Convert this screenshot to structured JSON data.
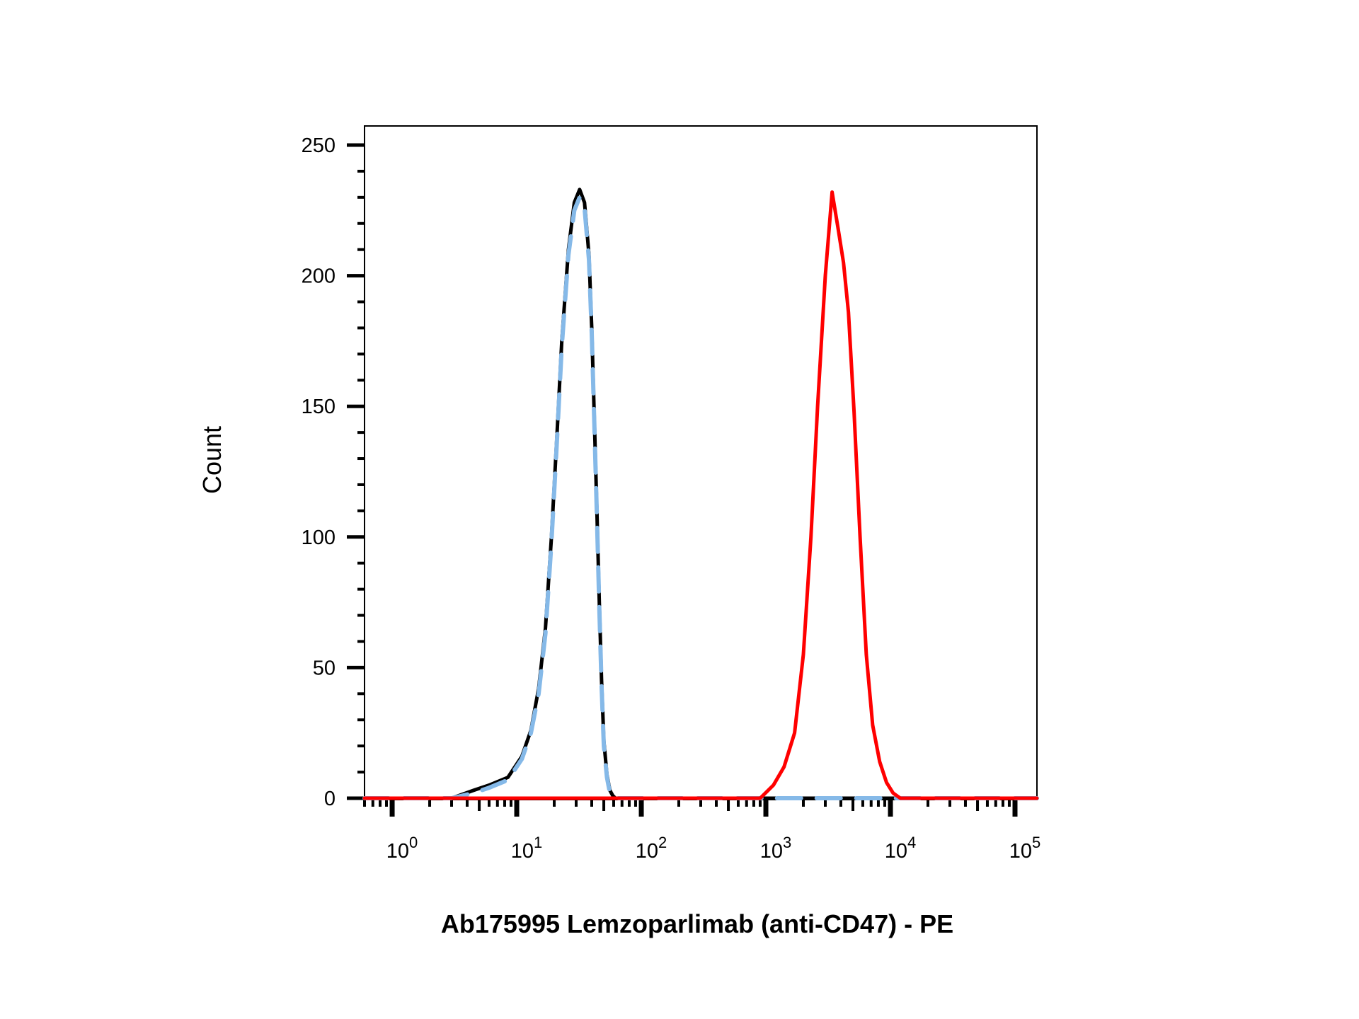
{
  "chart_data": {
    "type": "line",
    "title": "",
    "xlabel": "Ab175995 Lemzoparlimab (anti-CD47) - PE",
    "ylabel": "Count",
    "x_scale": "log",
    "xlim": [
      0.6,
      150000
    ],
    "ylim": [
      0,
      250
    ],
    "grid": false,
    "legend": "none",
    "y_ticks": [
      0,
      50,
      100,
      150,
      200,
      250
    ],
    "y_tick_labels": [
      "0",
      "50",
      "100",
      "150",
      "200",
      "250"
    ],
    "x_ticks": [
      1,
      10,
      100,
      1000,
      10000,
      100000
    ],
    "x_tick_labels": [
      {
        "base": "10",
        "exp": "0"
      },
      {
        "base": "10",
        "exp": "1"
      },
      {
        "base": "10",
        "exp": "2"
      },
      {
        "base": "10",
        "exp": "3"
      },
      {
        "base": "10",
        "exp": "4"
      },
      {
        "base": "10",
        "exp": "5"
      }
    ],
    "series": [
      {
        "color": "#000000",
        "style": "solid",
        "x": [
          0.6,
          3,
          4.5,
          6,
          8.5,
          11,
          13,
          15,
          17,
          19,
          21,
          23,
          26,
          29,
          32,
          35,
          38,
          40,
          42,
          44,
          46,
          48,
          50,
          53,
          56,
          59,
          62,
          66,
          70,
          75,
          80,
          88,
          100,
          115,
          130,
          150,
          150000
        ],
        "y": [
          0,
          0,
          3,
          5,
          8,
          16,
          26,
          42,
          65,
          100,
          138,
          175,
          210,
          228,
          233,
          228,
          208,
          180,
          145,
          110,
          75,
          45,
          22,
          9,
          3,
          1,
          0,
          0,
          0,
          0,
          0,
          0,
          0,
          0,
          0,
          0,
          0
        ]
      },
      {
        "color": "#85b9e8",
        "style": "dashed",
        "x": [
          0.6,
          3,
          4.5,
          6,
          8.5,
          11,
          13,
          15,
          17,
          19,
          21,
          23,
          26,
          29,
          32,
          35,
          38,
          40,
          42,
          44,
          46,
          48,
          50,
          53,
          56,
          59,
          62,
          66,
          70,
          75,
          80,
          88,
          100,
          115,
          130,
          150,
          150000
        ],
        "y": [
          0,
          0,
          2,
          4,
          7,
          15,
          25,
          40,
          63,
          98,
          136,
          173,
          208,
          225,
          230,
          226,
          206,
          178,
          143,
          108,
          73,
          43,
          20,
          8,
          2,
          0,
          0,
          0,
          0,
          0,
          0,
          0,
          0,
          0,
          0,
          0,
          0
        ]
      },
      {
        "color": "#ff0000",
        "style": "solid",
        "x": [
          0.6,
          900,
          1150,
          1400,
          1700,
          2000,
          2300,
          2600,
          3000,
          3400,
          3800,
          4200,
          4600,
          5100,
          5700,
          6400,
          7200,
          8200,
          9300,
          10500,
          12000,
          14000,
          16500,
          20000,
          150000
        ],
        "y": [
          0,
          0,
          5,
          12,
          25,
          55,
          100,
          150,
          200,
          232,
          218,
          205,
          186,
          148,
          100,
          55,
          28,
          14,
          6,
          2,
          0,
          0,
          0,
          0,
          0
        ]
      }
    ]
  }
}
